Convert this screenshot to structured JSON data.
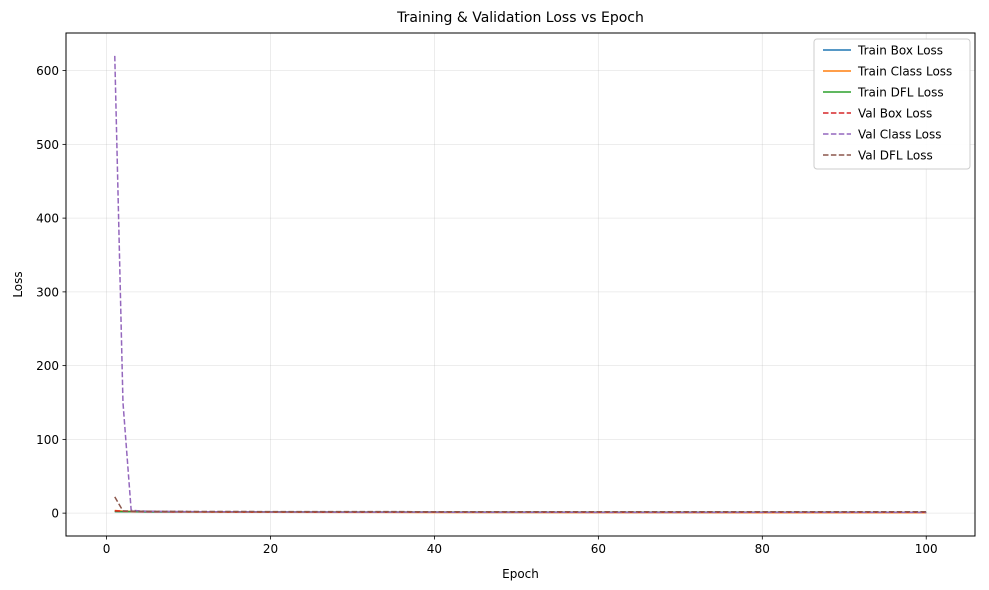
{
  "chart_data": {
    "type": "line",
    "title": "Training & Validation Loss vs Epoch",
    "xlabel": "Epoch",
    "ylabel": "Loss",
    "xlim": [
      -4.95,
      105.95
    ],
    "ylim": [
      -31,
      651
    ],
    "xticks": [
      0,
      20,
      40,
      60,
      80,
      100
    ],
    "yticks": [
      0,
      100,
      200,
      300,
      400,
      500,
      600
    ],
    "grid": true,
    "legend_position": "top-right",
    "series": [
      {
        "name": "Train Box Loss",
        "color": "#1f77b4",
        "dash": "solid",
        "x": [
          1,
          2,
          3,
          4,
          5,
          10,
          20,
          30,
          40,
          50,
          60,
          70,
          80,
          90,
          100
        ],
        "y": [
          2.0,
          1.9,
          1.8,
          1.7,
          1.6,
          1.5,
          1.35,
          1.25,
          1.15,
          1.05,
          1.0,
          0.95,
          0.9,
          0.85,
          0.8
        ]
      },
      {
        "name": "Train Class Loss",
        "color": "#ff7f0e",
        "dash": "solid",
        "x": [
          1,
          2,
          3,
          4,
          5,
          10,
          20,
          30,
          40,
          50,
          60,
          70,
          80,
          90,
          100
        ],
        "y": [
          3.5,
          2.8,
          2.4,
          2.1,
          1.9,
          1.5,
          1.2,
          1.0,
          0.9,
          0.8,
          0.7,
          0.65,
          0.6,
          0.55,
          0.5
        ]
      },
      {
        "name": "Train DFL Loss",
        "color": "#2ca02c",
        "dash": "solid",
        "x": [
          1,
          2,
          3,
          4,
          5,
          10,
          20,
          30,
          40,
          50,
          60,
          70,
          80,
          90,
          100
        ],
        "y": [
          2.2,
          2.1,
          2.0,
          1.95,
          1.9,
          1.8,
          1.7,
          1.6,
          1.55,
          1.5,
          1.45,
          1.4,
          1.35,
          1.3,
          1.25
        ]
      },
      {
        "name": "Val Box Loss",
        "color": "#d62728",
        "dash": "dashed",
        "x": [
          1,
          2,
          3,
          4,
          5,
          10,
          20,
          30,
          40,
          50,
          60,
          70,
          80,
          90,
          100
        ],
        "y": [
          3.0,
          2.5,
          2.2,
          2.0,
          1.9,
          1.7,
          1.5,
          1.4,
          1.35,
          1.3,
          1.25,
          1.2,
          1.2,
          1.15,
          1.15
        ]
      },
      {
        "name": "Val Class Loss",
        "color": "#9467bd",
        "dash": "dashed",
        "x": [
          1,
          2,
          3,
          4,
          5,
          10,
          20,
          30,
          40,
          50,
          60,
          70,
          80,
          90,
          100
        ],
        "y": [
          620,
          150,
          4.0,
          3.0,
          2.6,
          2.0,
          1.6,
          1.4,
          1.3,
          1.2,
          1.1,
          1.05,
          1.0,
          1.0,
          0.95
        ]
      },
      {
        "name": "Val DFL Loss",
        "color": "#8c564b",
        "dash": "dashed",
        "x": [
          1,
          2,
          3,
          4,
          5,
          10,
          20,
          30,
          40,
          50,
          60,
          70,
          80,
          90,
          100
        ],
        "y": [
          22,
          3.0,
          2.8,
          2.6,
          2.5,
          2.3,
          2.1,
          2.0,
          1.95,
          1.9,
          1.85,
          1.85,
          1.8,
          1.8,
          1.8
        ]
      }
    ]
  }
}
